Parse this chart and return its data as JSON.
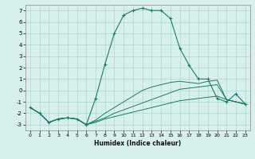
{
  "xlabel": "Humidex (Indice chaleur)",
  "background_color": "#d8f0ec",
  "grid_color": "#aed8d0",
  "line_color": "#1a7a6e",
  "x_values": [
    0,
    1,
    2,
    3,
    4,
    5,
    6,
    7,
    8,
    9,
    10,
    11,
    12,
    13,
    14,
    15,
    16,
    17,
    18,
    19,
    20,
    21,
    22,
    23
  ],
  "series1": [
    -1.5,
    -2.0,
    -2.8,
    -2.5,
    -2.4,
    -2.5,
    -3.0,
    -0.7,
    2.3,
    5.0,
    6.6,
    7.0,
    7.2,
    7.0,
    7.0,
    6.3,
    3.7,
    2.2,
    1.0,
    1.0,
    -0.7,
    -1.0,
    -0.3,
    -1.2
  ],
  "series2": [
    -1.5,
    -2.0,
    -2.8,
    -2.5,
    -2.4,
    -2.5,
    -3.0,
    -2.8,
    -2.5,
    -2.3,
    -2.1,
    -1.9,
    -1.7,
    -1.5,
    -1.3,
    -1.1,
    -0.9,
    -0.8,
    -0.7,
    -0.6,
    -0.5,
    -0.8,
    -1.0,
    -1.2
  ],
  "series3": [
    -1.5,
    -2.0,
    -2.8,
    -2.5,
    -2.4,
    -2.5,
    -3.0,
    -2.7,
    -2.4,
    -2.0,
    -1.7,
    -1.4,
    -1.1,
    -0.8,
    -0.5,
    -0.2,
    0.1,
    0.2,
    0.3,
    0.4,
    0.5,
    -0.8,
    -1.0,
    -1.2
  ],
  "series4": [
    -1.5,
    -2.0,
    -2.8,
    -2.5,
    -2.4,
    -2.5,
    -3.0,
    -2.6,
    -2.0,
    -1.5,
    -1.0,
    -0.5,
    0.0,
    0.3,
    0.5,
    0.7,
    0.8,
    0.7,
    0.6,
    0.8,
    0.9,
    -0.8,
    -1.0,
    -1.2
  ],
  "ylim": [
    -3.5,
    7.5
  ],
  "xlim": [
    -0.5,
    23.5
  ],
  "yticks": [
    -3,
    -2,
    -1,
    0,
    1,
    2,
    3,
    4,
    5,
    6,
    7
  ],
  "xticks": [
    0,
    1,
    2,
    3,
    4,
    5,
    6,
    7,
    8,
    9,
    10,
    11,
    12,
    13,
    14,
    15,
    16,
    17,
    18,
    19,
    20,
    21,
    22,
    23
  ]
}
